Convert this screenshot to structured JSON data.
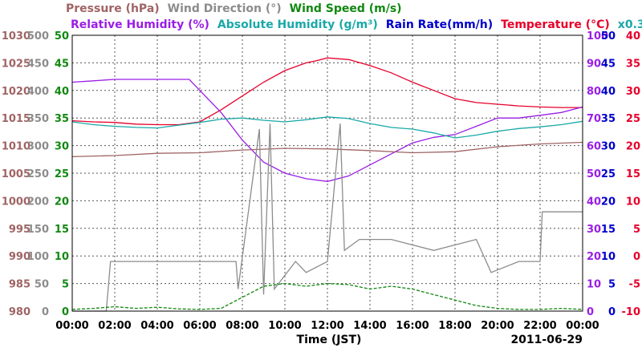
{
  "chart_data": {
    "type": "line",
    "date_label": "2011-06-29",
    "xlabel": "Time (JST)",
    "x_ticks": [
      "00:00",
      "02:00",
      "04:00",
      "06:00",
      "08:00",
      "10:00",
      "12:00",
      "14:00",
      "16:00",
      "18:00",
      "20:00",
      "22:00",
      "00:00"
    ],
    "x_range_hours": [
      0,
      24
    ],
    "legend_row1": [
      {
        "label": "Pressure (hPa)",
        "color": "#a06464"
      },
      {
        "label": "Wind Direction (°)",
        "color": "#8c8c8c"
      },
      {
        "label": "Wind Speed (m/s)",
        "color": "#118811"
      }
    ],
    "legend_row2": [
      {
        "label": "Relative Humidity (%)",
        "color": "#9a1ee6"
      },
      {
        "label": "Absolute Humidity (g/m³)",
        "color": "#1aa8a8"
      },
      {
        "label": "Rain Rate(mm/h)",
        "color": "#0000cc"
      },
      {
        "label": "Temperature (°C)",
        "color": "#e6002a"
      },
      {
        "label": "x0.3",
        "color": "#1aa8a8"
      }
    ],
    "axes": {
      "pressure": {
        "color": "#a06464",
        "ticks": [
          1030,
          1025,
          1020,
          1015,
          1010,
          1005,
          1000,
          995,
          990,
          985,
          980
        ],
        "range": [
          980,
          1030
        ]
      },
      "wind_direction": {
        "color": "#8c8c8c",
        "ticks": [
          500,
          450,
          400,
          350,
          300,
          250,
          200,
          150,
          100,
          50,
          0
        ],
        "range": [
          0,
          500
        ]
      },
      "wind_speed": {
        "color": "#118811",
        "ticks": [
          50,
          45,
          40,
          35,
          30,
          25,
          20,
          15,
          10,
          5,
          0
        ],
        "range": [
          0,
          50
        ]
      },
      "relative_humidity": {
        "color": "#9a1ee6",
        "ticks": [
          100,
          90,
          80,
          70,
          60,
          50,
          40,
          30,
          20,
          10,
          0
        ],
        "range": [
          0,
          100
        ]
      },
      "rain_rate": {
        "color": "#0000cc",
        "ticks": [
          50,
          45,
          40,
          35,
          30,
          25,
          20,
          15,
          10,
          5,
          0
        ],
        "range": [
          0,
          50
        ]
      },
      "temperature": {
        "color": "#e6002a",
        "ticks": [
          40,
          35,
          30,
          25,
          20,
          15,
          10,
          5,
          0,
          -5,
          -10
        ],
        "range": [
          -10,
          40
        ]
      }
    },
    "grid": true,
    "series": [
      {
        "name": "Temperature",
        "axis": "temperature",
        "color": "#e6002a",
        "points": [
          [
            0,
            24.5
          ],
          [
            1,
            24.3
          ],
          [
            2,
            24.2
          ],
          [
            3,
            23.9
          ],
          [
            4,
            23.8
          ],
          [
            5,
            23.8
          ],
          [
            6,
            24.3
          ],
          [
            7,
            26.5
          ],
          [
            8,
            29.0
          ],
          [
            9,
            31.5
          ],
          [
            10,
            33.6
          ],
          [
            11,
            35.0
          ],
          [
            11.5,
            35.4
          ],
          [
            12,
            35.9
          ],
          [
            13,
            35.6
          ],
          [
            14,
            34.5
          ],
          [
            15,
            33.2
          ],
          [
            16,
            31.5
          ],
          [
            17,
            30.0
          ],
          [
            18,
            28.5
          ],
          [
            19,
            27.8
          ],
          [
            20,
            27.5
          ],
          [
            21,
            27.2
          ],
          [
            22,
            27.0
          ],
          [
            23,
            26.9
          ],
          [
            24,
            26.9
          ]
        ]
      },
      {
        "name": "Relative Humidity",
        "axis": "relative_humidity",
        "color": "#9a1ee6",
        "points": [
          [
            0,
            83
          ],
          [
            1,
            83.5
          ],
          [
            2,
            84
          ],
          [
            3,
            84
          ],
          [
            4,
            84
          ],
          [
            5,
            84
          ],
          [
            5.5,
            84
          ],
          [
            6,
            80
          ],
          [
            7,
            72
          ],
          [
            8,
            62
          ],
          [
            9,
            54
          ],
          [
            10,
            50
          ],
          [
            11,
            48
          ],
          [
            12,
            47
          ],
          [
            13,
            49
          ],
          [
            14,
            53
          ],
          [
            15,
            57
          ],
          [
            16,
            61
          ],
          [
            17,
            63
          ],
          [
            18,
            64
          ],
          [
            19,
            67
          ],
          [
            20,
            70
          ],
          [
            21,
            70
          ],
          [
            22,
            71
          ],
          [
            23,
            72
          ],
          [
            24,
            74
          ]
        ]
      },
      {
        "name": "Absolute Humidity x0.3",
        "axis": "rain_rate",
        "color": "#1aa8a8",
        "points": [
          [
            0,
            34.3
          ],
          [
            1,
            33.8
          ],
          [
            2,
            33.5
          ],
          [
            3,
            33.3
          ],
          [
            4,
            33.2
          ],
          [
            5,
            33.7
          ],
          [
            6,
            34.2
          ],
          [
            7,
            34.8
          ],
          [
            8,
            35.0
          ],
          [
            9,
            34.6
          ],
          [
            10,
            34.3
          ],
          [
            11,
            34.7
          ],
          [
            12,
            35.2
          ],
          [
            13,
            34.9
          ],
          [
            14,
            34.0
          ],
          [
            15,
            33.3
          ],
          [
            16,
            33.0
          ],
          [
            17,
            32.3
          ],
          [
            18,
            31.4
          ],
          [
            19,
            31.9
          ],
          [
            20,
            32.6
          ],
          [
            21,
            33.1
          ],
          [
            22,
            33.4
          ],
          [
            23,
            33.8
          ],
          [
            24,
            34.4
          ]
        ]
      },
      {
        "name": "Pressure",
        "axis": "pressure",
        "color": "#a06464",
        "points": [
          [
            0,
            1008.0
          ],
          [
            2,
            1008.2
          ],
          [
            4,
            1008.6
          ],
          [
            6,
            1008.7
          ],
          [
            8,
            1009.2
          ],
          [
            10,
            1009.5
          ],
          [
            12,
            1009.4
          ],
          [
            14,
            1009.1
          ],
          [
            16,
            1008.7
          ],
          [
            18,
            1008.9
          ],
          [
            20,
            1009.8
          ],
          [
            22,
            1010.3
          ],
          [
            24,
            1010.6
          ]
        ]
      },
      {
        "name": "Wind Direction",
        "axis": "wind_direction",
        "color": "#8c8c8c",
        "points": [
          [
            0,
            0
          ],
          [
            1.6,
            0
          ],
          [
            1.8,
            90
          ],
          [
            7.7,
            90
          ],
          [
            7.8,
            40
          ],
          [
            8.8,
            330
          ],
          [
            9.0,
            30
          ],
          [
            9.3,
            340
          ],
          [
            9.5,
            40
          ],
          [
            10.5,
            90
          ],
          [
            11.0,
            70
          ],
          [
            12.0,
            90
          ],
          [
            12.6,
            340
          ],
          [
            12.8,
            110
          ],
          [
            13.5,
            130
          ],
          [
            15.0,
            130
          ],
          [
            17.0,
            110
          ],
          [
            19.0,
            130
          ],
          [
            19.7,
            70
          ],
          [
            21.0,
            90
          ],
          [
            22.0,
            90
          ],
          [
            22.1,
            180
          ],
          [
            24,
            180
          ]
        ]
      },
      {
        "name": "Wind Speed",
        "axis": "wind_speed",
        "color": "#118811",
        "points": [
          [
            0,
            0.3
          ],
          [
            1,
            0.5
          ],
          [
            2,
            0.8
          ],
          [
            3,
            0.5
          ],
          [
            4,
            0.7
          ],
          [
            5,
            0.4
          ],
          [
            6,
            0.3
          ],
          [
            7,
            0.5
          ],
          [
            8,
            2.5
          ],
          [
            9,
            4.5
          ],
          [
            10,
            5.0
          ],
          [
            11,
            4.5
          ],
          [
            12,
            5.0
          ],
          [
            13,
            4.8
          ],
          [
            14,
            4.0
          ],
          [
            15,
            4.5
          ],
          [
            16,
            4.0
          ],
          [
            17,
            3.0
          ],
          [
            18,
            2.0
          ],
          [
            19,
            1.0
          ],
          [
            20,
            0.5
          ],
          [
            21,
            0.3
          ],
          [
            22,
            0.3
          ],
          [
            23,
            0.5
          ],
          [
            24,
            0.3
          ]
        ]
      }
    ]
  }
}
